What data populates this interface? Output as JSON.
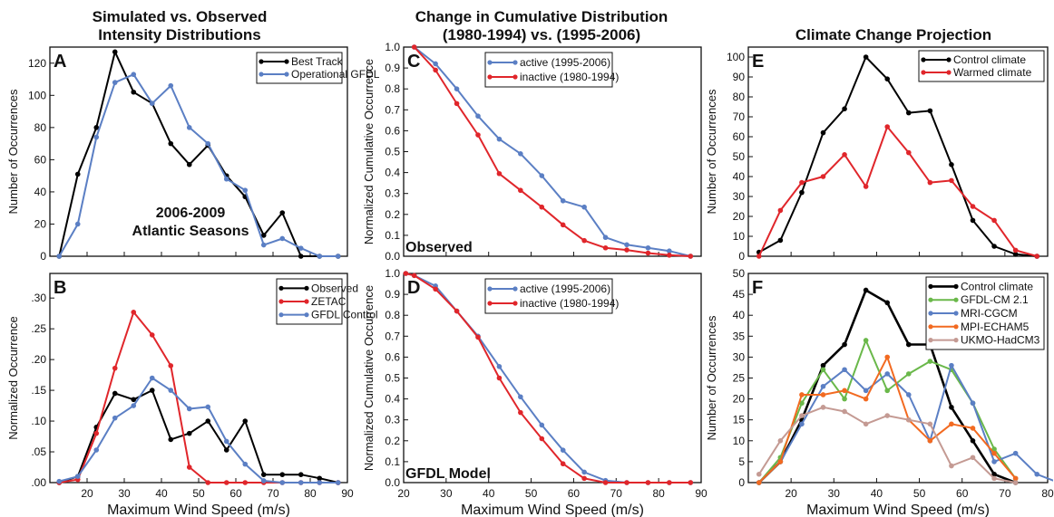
{
  "titles": {
    "col1": [
      "Simulated vs. Observed",
      "Intensity Distributions"
    ],
    "col2": [
      "Change in Cumulative Distribution",
      "(1980-1994) vs. (1995-2006)"
    ],
    "col3": [
      "Climate Change Projection"
    ]
  },
  "colors": {
    "black": "#000000",
    "blue": "#5b7fc4",
    "red": "#e0262b",
    "green": "#6ab84a",
    "orange": "#f26a21",
    "pink": "#c49a93"
  },
  "chart_data": [
    {
      "id": "A",
      "type": "line",
      "letter": "A",
      "xlim": [
        10,
        90
      ],
      "ylim": [
        0,
        130
      ],
      "xticks": [
        10,
        20,
        30,
        40,
        50,
        60,
        70,
        80,
        90
      ],
      "xtick_labels": [],
      "yticks": [
        0,
        20,
        40,
        60,
        80,
        100,
        120
      ],
      "ytick_labels": [
        "0",
        "20",
        "40",
        "60",
        "80",
        "100",
        "120"
      ],
      "ylabel": "Number of Occurrences",
      "xlabel": "",
      "annotation": [
        "2006-2009",
        "Atlantic Seasons"
      ],
      "legend": "top-right",
      "series": [
        {
          "name": "Best Track",
          "color": "#000000",
          "x": [
            12.5,
            17.5,
            22.5,
            27.5,
            32.5,
            37.5,
            42.5,
            47.5,
            52.5,
            57.5,
            62.5,
            67.5,
            72.5,
            77.5,
            82.5,
            87.5
          ],
          "y": [
            0,
            51,
            80,
            127,
            102,
            95,
            70,
            57,
            69,
            50,
            37,
            13,
            27,
            0,
            0,
            0
          ]
        },
        {
          "name": "Operational GFDL",
          "color": "#5b7fc4",
          "x": [
            12.5,
            17.5,
            22.5,
            27.5,
            32.5,
            37.5,
            42.5,
            47.5,
            52.5,
            57.5,
            62.5,
            67.5,
            72.5,
            77.5,
            82.5,
            87.5
          ],
          "y": [
            0,
            20,
            74,
            108,
            113,
            95,
            106,
            80,
            70,
            48,
            41,
            7,
            11,
            5,
            0,
            0
          ]
        }
      ]
    },
    {
      "id": "B",
      "type": "line",
      "letter": "B",
      "xlim": [
        10,
        90
      ],
      "ylim": [
        0,
        0.34
      ],
      "xticks": [
        10,
        20,
        30,
        40,
        50,
        60,
        70,
        80,
        90
      ],
      "xtick_labels": [
        "",
        "20",
        "30",
        "40",
        "50",
        "60",
        "70",
        "80",
        "90"
      ],
      "yticks": [
        0,
        0.05,
        0.1,
        0.15,
        0.2,
        0.25,
        0.3
      ],
      "ytick_labels": [
        ".00",
        ".05",
        ".10",
        ".15",
        ".20",
        ".25",
        ".30"
      ],
      "ylabel": "Normalized Occurrence",
      "xlabel": "Maximum Wind Speed (m/s)",
      "legend": "top-right",
      "series": [
        {
          "name": "Observed",
          "color": "#000000",
          "x": [
            12.5,
            17.5,
            22.5,
            27.5,
            32.5,
            37.5,
            42.5,
            47.5,
            52.5,
            57.5,
            62.5,
            67.5,
            72.5,
            77.5,
            82.5,
            87.5
          ],
          "y": [
            0,
            0.01,
            0.09,
            0.145,
            0.135,
            0.15,
            0.07,
            0.08,
            0.1,
            0.053,
            0.1,
            0.013,
            0.013,
            0.013,
            0.007,
            0
          ]
        },
        {
          "name": "ZETAC",
          "color": "#e0262b",
          "x": [
            12.5,
            17.5,
            22.5,
            27.5,
            32.5,
            37.5,
            42.5,
            47.5,
            52.5,
            57.5,
            62.5,
            67.5,
            72.5,
            77.5,
            82.5,
            87.5
          ],
          "y": [
            0,
            0.005,
            0.08,
            0.186,
            0.277,
            0.24,
            0.19,
            0.025,
            0,
            0,
            0,
            0,
            0,
            0,
            0,
            0
          ]
        },
        {
          "name": "GFDL Control",
          "color": "#5b7fc4",
          "x": [
            12.5,
            17.5,
            22.5,
            27.5,
            32.5,
            37.5,
            42.5,
            47.5,
            52.5,
            57.5,
            62.5,
            67.5,
            72.5,
            77.5,
            82.5,
            87.5
          ],
          "y": [
            0.002,
            0.01,
            0.053,
            0.105,
            0.125,
            0.17,
            0.15,
            0.12,
            0.123,
            0.067,
            0.03,
            0.003,
            0,
            0,
            0,
            0
          ]
        }
      ]
    },
    {
      "id": "C",
      "type": "line",
      "letter": "C",
      "xlim": [
        20,
        90
      ],
      "ylim": [
        0,
        1.0
      ],
      "xticks": [
        20,
        30,
        40,
        50,
        60,
        70,
        80,
        90
      ],
      "xtick_labels": [],
      "yticks": [
        0,
        0.1,
        0.2,
        0.3,
        0.4,
        0.5,
        0.6,
        0.7,
        0.8,
        0.9,
        1.0
      ],
      "ytick_labels": [
        "0.0",
        "0.1",
        "0.2",
        "0.3",
        "0.4",
        "0.5",
        "0.6",
        "0.7",
        "0.8",
        "0.9",
        "1.0"
      ],
      "ylabel": "Normalized Cumulative Occurrence",
      "xlabel": "",
      "annotation": [
        "Observed"
      ],
      "legend": "top-right",
      "series": [
        {
          "name": "active (1995-2006)",
          "color": "#5b7fc4",
          "x": [
            22.5,
            27.5,
            32.5,
            37.5,
            42.5,
            47.5,
            52.5,
            57.5,
            62.5,
            67.5,
            72.5,
            77.5,
            82.5,
            87.5
          ],
          "y": [
            1.0,
            0.92,
            0.8,
            0.67,
            0.56,
            0.49,
            0.385,
            0.265,
            0.235,
            0.09,
            0.055,
            0.04,
            0.025,
            0
          ]
        },
        {
          "name": "inactive (1980-1994)",
          "color": "#e0262b",
          "x": [
            22.5,
            27.5,
            32.5,
            37.5,
            42.5,
            47.5,
            52.5,
            57.5,
            62.5,
            67.5,
            72.5,
            77.5,
            82.5,
            87.5
          ],
          "y": [
            1.0,
            0.89,
            0.73,
            0.58,
            0.395,
            0.315,
            0.235,
            0.15,
            0.075,
            0.04,
            0.03,
            0.015,
            0.005,
            0
          ]
        }
      ]
    },
    {
      "id": "D",
      "type": "line",
      "letter": "D",
      "xlim": [
        20,
        90
      ],
      "ylim": [
        0,
        1.0
      ],
      "xticks": [
        20,
        30,
        40,
        50,
        60,
        70,
        80,
        90
      ],
      "xtick_labels": [
        "20",
        "30",
        "40",
        "50",
        "60",
        "70",
        "80",
        "90"
      ],
      "yticks": [
        0,
        0.1,
        0.2,
        0.3,
        0.4,
        0.5,
        0.6,
        0.7,
        0.8,
        0.9,
        1.0
      ],
      "ytick_labels": [
        "0.0",
        "0.1",
        "0.2",
        "0.3",
        "0.4",
        "0.5",
        "0.6",
        "0.7",
        "0.8",
        "0.9",
        "1.0"
      ],
      "ylabel": "Normalized Cumulative Occurrence",
      "xlabel": "Maximum Wind Speed (m/s)",
      "annotation": [
        "GFDL Model"
      ],
      "legend": "top-right",
      "series": [
        {
          "name": "active (1995-2006)",
          "color": "#5b7fc4",
          "x": [
            20.5,
            22.5,
            27.5,
            32.5,
            37.5,
            42.5,
            47.5,
            52.5,
            57.5,
            62.5,
            67.5,
            72.5,
            77.5,
            82.5,
            87.5
          ],
          "y": [
            1.0,
            0.99,
            0.94,
            0.82,
            0.7,
            0.555,
            0.41,
            0.275,
            0.155,
            0.05,
            0.01,
            0,
            0,
            0,
            0
          ]
        },
        {
          "name": "inactive (1980-1994)",
          "color": "#e0262b",
          "x": [
            20.5,
            22.5,
            27.5,
            32.5,
            37.5,
            42.5,
            47.5,
            52.5,
            57.5,
            62.5,
            67.5,
            72.5,
            77.5,
            82.5,
            87.5
          ],
          "y": [
            1.0,
            0.99,
            0.925,
            0.82,
            0.695,
            0.5,
            0.335,
            0.21,
            0.09,
            0.02,
            0,
            0,
            0,
            0,
            0
          ]
        }
      ]
    },
    {
      "id": "E",
      "type": "line",
      "letter": "E",
      "xlim": [
        10,
        80
      ],
      "ylim": [
        0,
        105
      ],
      "xticks": [
        10,
        20,
        30,
        40,
        50,
        60,
        70,
        80
      ],
      "xtick_labels": [],
      "yticks": [
        0,
        10,
        20,
        30,
        40,
        50,
        60,
        70,
        80,
        90,
        100
      ],
      "ytick_labels": [
        "0",
        "10",
        "20",
        "30",
        "40",
        "50",
        "60",
        "70",
        "80",
        "90",
        "100"
      ],
      "ylabel": "Number of Occurrences",
      "xlabel": "",
      "legend": "top-right",
      "series": [
        {
          "name": "Control climate",
          "color": "#000000",
          "x": [
            12.5,
            17.5,
            22.5,
            27.5,
            32.5,
            37.5,
            42.5,
            47.5,
            52.5,
            57.5,
            62.5,
            67.5,
            72.5,
            77.5
          ],
          "y": [
            2,
            8,
            32,
            62,
            74,
            100,
            89,
            72,
            73,
            46,
            18,
            5,
            1,
            0
          ]
        },
        {
          "name": "Warmed climate",
          "color": "#e0262b",
          "x": [
            12.5,
            17.5,
            22.5,
            27.5,
            32.5,
            37.5,
            42.5,
            47.5,
            52.5,
            57.5,
            62.5,
            67.5,
            72.5,
            77.5
          ],
          "y": [
            0,
            23,
            37,
            40,
            51,
            35,
            65,
            52,
            37,
            38,
            25,
            18,
            3,
            0
          ]
        }
      ]
    },
    {
      "id": "F",
      "type": "line",
      "letter": "F",
      "xlim": [
        10,
        80
      ],
      "ylim": [
        0,
        50
      ],
      "xticks": [
        10,
        20,
        30,
        40,
        50,
        60,
        70,
        80
      ],
      "xtick_labels": [
        "",
        "20",
        "30",
        "40",
        "50",
        "60",
        "70",
        "80"
      ],
      "yticks": [
        0,
        5,
        10,
        15,
        20,
        25,
        30,
        35,
        40,
        45,
        50
      ],
      "ytick_labels": [
        "0",
        "5",
        "10",
        "15",
        "20",
        "25",
        "30",
        "35",
        "40",
        "45",
        "50"
      ],
      "ylabel": "Number of Occurrences",
      "xlabel": "Maximum Wind Speed (m/s)",
      "legend": "top-right",
      "series": [
        {
          "name": "Control climate",
          "color": "#000000",
          "width": 2.6,
          "x": [
            12.5,
            17.5,
            22.5,
            27.5,
            32.5,
            37.5,
            42.5,
            47.5,
            52.5,
            57.5,
            62.5,
            67.5,
            72.5
          ],
          "y": [
            0,
            5,
            15,
            28,
            33,
            46,
            43,
            33,
            33,
            18,
            10,
            2,
            0
          ]
        },
        {
          "name": "GFDL-CM 2.1",
          "color": "#6ab84a",
          "x": [
            12.5,
            17.5,
            22.5,
            27.5,
            32.5,
            37.5,
            42.5,
            47.5,
            52.5,
            57.5,
            62.5,
            67.5,
            72.5
          ],
          "y": [
            0,
            6,
            19,
            27,
            20,
            34,
            22,
            26,
            29,
            27,
            19,
            8,
            1
          ]
        },
        {
          "name": "MRI-CGCM",
          "color": "#5b7fc4",
          "x": [
            12.5,
            17.5,
            22.5,
            27.5,
            32.5,
            37.5,
            42.5,
            47.5,
            52.5,
            57.5,
            62.5,
            67.5,
            72.5,
            77.5,
            82.5
          ],
          "y": [
            0,
            5,
            14,
            23,
            27,
            22,
            26,
            21,
            10,
            28,
            19,
            5,
            7,
            2,
            0
          ]
        },
        {
          "name": "MPI-ECHAM5",
          "color": "#f26a21",
          "x": [
            12.5,
            17.5,
            22.5,
            27.5,
            32.5,
            37.5,
            42.5,
            47.5,
            52.5,
            57.5,
            62.5,
            67.5,
            72.5
          ],
          "y": [
            0,
            5,
            21,
            21,
            22,
            20,
            30,
            15,
            10,
            14,
            13,
            7,
            1
          ]
        },
        {
          "name": "UKMO-HadCM3",
          "color": "#c49a93",
          "x": [
            12.5,
            17.5,
            22.5,
            27.5,
            32.5,
            37.5,
            42.5,
            47.5,
            52.5,
            57.5,
            62.5,
            67.5,
            72.5
          ],
          "y": [
            2,
            10,
            16,
            18,
            17,
            14,
            16,
            15,
            14,
            4,
            6,
            1,
            0
          ]
        }
      ]
    }
  ]
}
